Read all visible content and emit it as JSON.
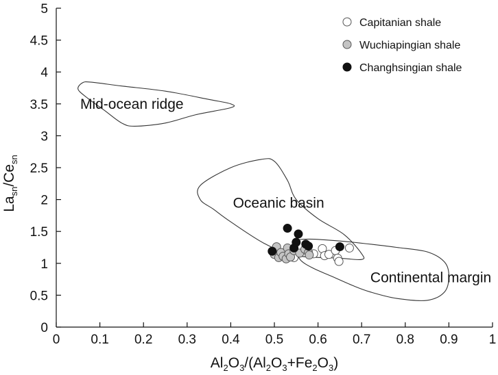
{
  "chart_data": {
    "type": "scatter",
    "xlim": [
      0,
      1
    ],
    "ylim": [
      0,
      5
    ],
    "x_ticks": [
      0,
      0.1,
      0.2,
      0.3,
      0.4,
      0.5,
      0.6,
      0.7,
      0.8,
      0.9,
      1
    ],
    "y_ticks": [
      0,
      0.5,
      1,
      1.5,
      2,
      2.5,
      3,
      3.5,
      4,
      4.5,
      5
    ],
    "x_tick_labels": [
      "0",
      "0.1",
      "0.2",
      "0.3",
      "0.4",
      "0.5",
      "0.6",
      "0.7",
      "0.8",
      "0.9",
      "1"
    ],
    "y_tick_labels": [
      "0",
      "0.5",
      "1",
      "1.5",
      "2",
      "2.5",
      "3",
      "3.5",
      "4",
      "4.5",
      "5"
    ],
    "xlabel": {
      "base": "Al",
      "sub1": "2",
      "mid1": "O",
      "sub2": "3",
      "mid2": "/(Al",
      "sub3": "2",
      "mid3": "O",
      "sub4": "3",
      "mid4": "+Fe",
      "sub5": "2",
      "mid5": "O",
      "sub6": "3",
      "end": ")"
    },
    "ylabel": {
      "base1": "La",
      "sub1": "sn",
      "mid": "/Ce",
      "sub2": "sn"
    },
    "grid": false,
    "legend_position": "top-right",
    "series": [
      {
        "name": "Capitanian shale",
        "color": "#ffffff",
        "edge": "#555555",
        "points": [
          {
            "x": 0.545,
            "y": 1.09
          },
          {
            "x": 0.59,
            "y": 1.15
          },
          {
            "x": 0.61,
            "y": 1.23
          },
          {
            "x": 0.615,
            "y": 1.12
          },
          {
            "x": 0.625,
            "y": 1.14
          },
          {
            "x": 0.64,
            "y": 1.2
          },
          {
            "x": 0.645,
            "y": 1.08
          },
          {
            "x": 0.648,
            "y": 1.03
          },
          {
            "x": 0.672,
            "y": 1.24
          }
        ]
      },
      {
        "name": "Wuchiapingian shale",
        "color": "#c4c4c4",
        "edge": "#555555",
        "points": [
          {
            "x": 0.5,
            "y": 1.14
          },
          {
            "x": 0.505,
            "y": 1.26
          },
          {
            "x": 0.51,
            "y": 1.09
          },
          {
            "x": 0.515,
            "y": 1.17
          },
          {
            "x": 0.52,
            "y": 1.11
          },
          {
            "x": 0.527,
            "y": 1.07
          },
          {
            "x": 0.53,
            "y": 1.24
          },
          {
            "x": 0.533,
            "y": 1.15
          },
          {
            "x": 0.537,
            "y": 1.1
          },
          {
            "x": 0.545,
            "y": 1.2
          },
          {
            "x": 0.558,
            "y": 1.16
          },
          {
            "x": 0.57,
            "y": 1.22
          },
          {
            "x": 0.578,
            "y": 1.17
          },
          {
            "x": 0.58,
            "y": 1.13
          }
        ]
      },
      {
        "name": "Changhsingian shale",
        "color": "#111111",
        "edge": "#111111",
        "points": [
          {
            "x": 0.495,
            "y": 1.19
          },
          {
            "x": 0.53,
            "y": 1.55
          },
          {
            "x": 0.545,
            "y": 1.24
          },
          {
            "x": 0.55,
            "y": 1.33
          },
          {
            "x": 0.555,
            "y": 1.46
          },
          {
            "x": 0.572,
            "y": 1.3
          },
          {
            "x": 0.578,
            "y": 1.27
          },
          {
            "x": 0.65,
            "y": 1.26
          }
        ]
      }
    ],
    "regions": [
      {
        "name": "Mid-ocean ridge",
        "label_anchor": {
          "x": 0.055,
          "y": 3.5
        },
        "polygon": [
          [
            0.06,
            3.83
          ],
          [
            0.05,
            3.73
          ],
          [
            0.07,
            3.6
          ],
          [
            0.11,
            3.4
          ],
          [
            0.15,
            3.2
          ],
          [
            0.18,
            3.15
          ],
          [
            0.25,
            3.2
          ],
          [
            0.32,
            3.33
          ],
          [
            0.4,
            3.44
          ],
          [
            0.4,
            3.5
          ],
          [
            0.35,
            3.57
          ],
          [
            0.25,
            3.7
          ],
          [
            0.15,
            3.78
          ],
          [
            0.08,
            3.84
          ]
        ]
      },
      {
        "name": "Oceanic basin",
        "label_anchor": {
          "x": 0.405,
          "y": 1.95
        },
        "polygon": [
          [
            0.33,
            2.22
          ],
          [
            0.4,
            2.5
          ],
          [
            0.47,
            2.63
          ],
          [
            0.5,
            2.6
          ],
          [
            0.53,
            2.3
          ],
          [
            0.55,
            2.0
          ],
          [
            0.6,
            1.7
          ],
          [
            0.66,
            1.45
          ],
          [
            0.7,
            1.15
          ],
          [
            0.7,
            1.06
          ],
          [
            0.65,
            1.08
          ],
          [
            0.55,
            1.12
          ],
          [
            0.48,
            1.3
          ],
          [
            0.4,
            1.65
          ],
          [
            0.36,
            1.85
          ],
          [
            0.33,
            2.0
          ]
        ]
      },
      {
        "name": "Continental margin",
        "label_anchor": {
          "x": 0.72,
          "y": 0.78
        },
        "polygon": [
          [
            0.58,
            1.38
          ],
          [
            0.65,
            1.35
          ],
          [
            0.72,
            1.3
          ],
          [
            0.78,
            1.25
          ],
          [
            0.85,
            1.18
          ],
          [
            0.89,
            1.02
          ],
          [
            0.9,
            0.8
          ],
          [
            0.89,
            0.55
          ],
          [
            0.85,
            0.42
          ],
          [
            0.78,
            0.45
          ],
          [
            0.72,
            0.55
          ],
          [
            0.68,
            0.65
          ],
          [
            0.63,
            0.8
          ],
          [
            0.59,
            0.92
          ],
          [
            0.56,
            1.05
          ],
          [
            0.55,
            1.22
          ],
          [
            0.55,
            1.35
          ]
        ]
      }
    ]
  }
}
